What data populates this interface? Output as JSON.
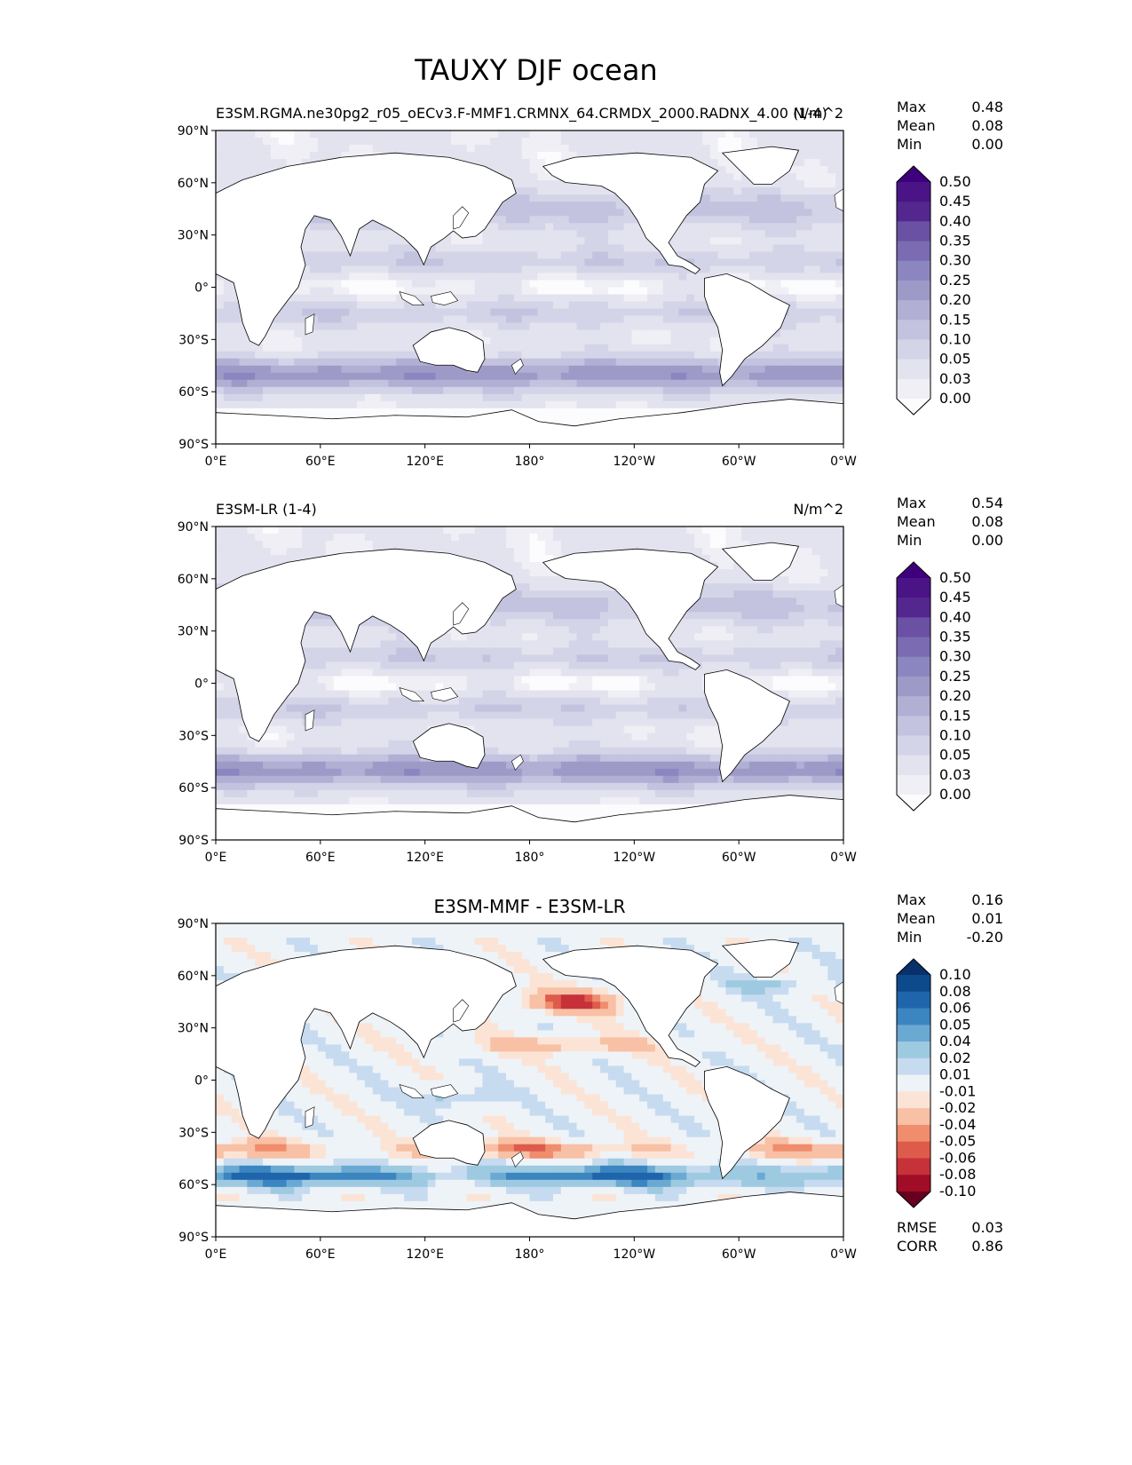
{
  "figure": {
    "title": "TAUXY DJF ocean"
  },
  "chart_data": [
    {
      "type": "heatmap",
      "panel": "test",
      "title_left": "E3SM.RGMA.ne30pg2_r05_oECv3.F-MMF1.CRMNX_64.CRMDX_2000.RADNX_4.00 (1-4)",
      "title_center": "",
      "units": "N/m^2",
      "stats": [
        {
          "label": "Max",
          "value": "0.48"
        },
        {
          "label": "Mean",
          "value": "0.08"
        },
        {
          "label": "Min",
          "value": "0.00"
        }
      ],
      "colormap": "purples",
      "colorbar_levels": [
        "0.50",
        "0.45",
        "0.40",
        "0.35",
        "0.30",
        "0.25",
        "0.20",
        "0.15",
        "0.10",
        "0.05",
        "0.03",
        "0.00"
      ],
      "colorbar_colors": [
        "#3f007d",
        "#4a1486",
        "#54278f",
        "#6a51a3",
        "#7b6bb3",
        "#8c86c0",
        "#9e9ac8",
        "#b1afd4",
        "#c3c3df",
        "#d4d4e8",
        "#e3e3ef",
        "#efeff5",
        "#fcfbfd"
      ],
      "xticks": [
        "0°E",
        "60°E",
        "120°E",
        "180°",
        "120°W",
        "60°W",
        "0°W"
      ],
      "yticks": [
        "90°N",
        "60°N",
        "30°N",
        "0°",
        "30°S",
        "60°S",
        "90°S"
      ],
      "xlim": [
        0,
        360
      ],
      "ylim": [
        -90,
        90
      ]
    },
    {
      "type": "heatmap",
      "panel": "reference",
      "title_left": "E3SM-LR (1-4)",
      "title_center": "",
      "units": "N/m^2",
      "stats": [
        {
          "label": "Max",
          "value": "0.54"
        },
        {
          "label": "Mean",
          "value": "0.08"
        },
        {
          "label": "Min",
          "value": "0.00"
        }
      ],
      "colormap": "purples",
      "colorbar_levels": [
        "0.50",
        "0.45",
        "0.40",
        "0.35",
        "0.30",
        "0.25",
        "0.20",
        "0.15",
        "0.10",
        "0.05",
        "0.03",
        "0.00"
      ],
      "colorbar_colors": [
        "#3f007d",
        "#4a1486",
        "#54278f",
        "#6a51a3",
        "#7b6bb3",
        "#8c86c0",
        "#9e9ac8",
        "#b1afd4",
        "#c3c3df",
        "#d4d4e8",
        "#e3e3ef",
        "#efeff5",
        "#fcfbfd"
      ],
      "xticks": [
        "0°E",
        "60°E",
        "120°E",
        "180°",
        "120°W",
        "60°W",
        "0°W"
      ],
      "yticks": [
        "90°N",
        "60°N",
        "30°N",
        "0°",
        "30°S",
        "60°S",
        "90°S"
      ],
      "xlim": [
        0,
        360
      ],
      "ylim": [
        -90,
        90
      ]
    },
    {
      "type": "heatmap",
      "panel": "difference",
      "title_left": "",
      "title_center": "E3SM-MMF - E3SM-LR",
      "units": "",
      "stats": [
        {
          "label": "Max",
          "value": "0.16"
        },
        {
          "label": "Mean",
          "value": "0.01"
        },
        {
          "label": "Min",
          "value": "-0.20"
        }
      ],
      "extra_stats": [
        {
          "label": "RMSE",
          "value": "0.03"
        },
        {
          "label": "CORR",
          "value": "0.86"
        }
      ],
      "colormap": "RdBu",
      "colorbar_levels": [
        "0.10",
        "0.08",
        "0.06",
        "0.05",
        "0.04",
        "0.02",
        "0.01",
        "-0.01",
        "-0.02",
        "-0.04",
        "-0.05",
        "-0.06",
        "-0.08",
        "-0.10"
      ],
      "colorbar_colors": [
        "#08306b",
        "#0d4a8c",
        "#1f65ac",
        "#3b85c0",
        "#6aa9d2",
        "#9ecae1",
        "#c6dbef",
        "#eef3f8",
        "#fbe4d6",
        "#f8c0a4",
        "#ef8d6d",
        "#de5b4c",
        "#c6313a",
        "#a10c26",
        "#67001f"
      ],
      "xticks": [
        "0°E",
        "60°E",
        "120°E",
        "180°",
        "120°W",
        "60°W",
        "0°W"
      ],
      "yticks": [
        "90°N",
        "60°N",
        "30°N",
        "0°",
        "30°S",
        "60°S",
        "90°S"
      ],
      "xlim": [
        0,
        360
      ],
      "ylim": [
        -90,
        90
      ]
    }
  ]
}
